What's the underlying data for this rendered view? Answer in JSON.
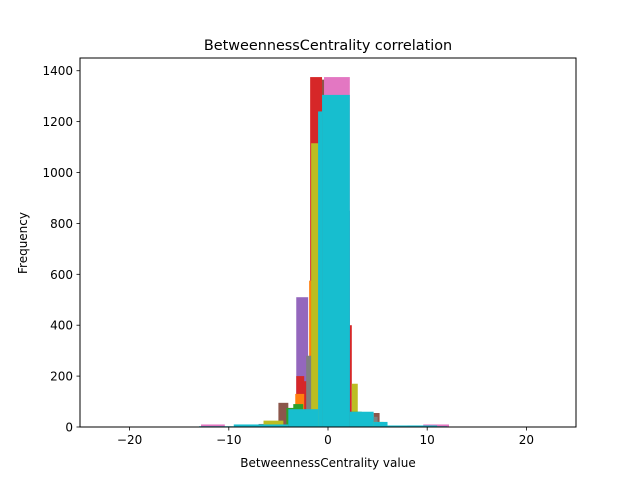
{
  "chart_data": {
    "type": "bar",
    "title": "BetweennessCentrality correlation",
    "xlabel": "BetweennessCentrality value",
    "ylabel": "Frequency",
    "xlim": [
      -25,
      25
    ],
    "ylim": [
      0,
      1450
    ],
    "xticks": [
      -20,
      -10,
      0,
      10,
      20
    ],
    "xtick_labels": [
      "−20",
      "−10",
      "0",
      "10",
      "20"
    ],
    "yticks": [
      0,
      200,
      400,
      600,
      800,
      1000,
      1200,
      1400
    ],
    "ytick_labels": [
      "0",
      "200",
      "400",
      "600",
      "800",
      "1000",
      "1200",
      "1400"
    ],
    "grid": false,
    "legend": "none",
    "series": [
      {
        "color": "#9467bd",
        "bins": [
          [
            -3.2,
            -2.0,
            510
          ],
          [
            -4.5,
            -3.2,
            45
          ],
          [
            -2.0,
            -1.0,
            40
          ]
        ]
      },
      {
        "color": "#8c564b",
        "bins": [
          [
            -5.0,
            -4.0,
            95
          ],
          [
            -4.0,
            -3.3,
            60
          ],
          [
            -1.2,
            -0.2,
            1365
          ],
          [
            4.6,
            5.2,
            55
          ]
        ]
      },
      {
        "color": "#d62728",
        "bins": [
          [
            -1.8,
            -0.6,
            1375
          ],
          [
            -3.2,
            -2.4,
            200
          ],
          [
            2.0,
            2.4,
            400
          ],
          [
            -2.6,
            -1.8,
            180
          ]
        ]
      },
      {
        "color": "#e377c2",
        "bins": [
          [
            -0.4,
            2.2,
            1375
          ],
          [
            -1.3,
            -0.7,
            700
          ],
          [
            -12.8,
            -10.4,
            10
          ],
          [
            9.6,
            12.2,
            10
          ]
        ]
      },
      {
        "color": "#ff7f0e",
        "bins": [
          [
            -1.9,
            -1.2,
            575
          ],
          [
            -3.3,
            -2.4,
            130
          ],
          [
            -1.2,
            -0.6,
            505
          ]
        ]
      },
      {
        "color": "#7f7f7f",
        "bins": [
          [
            -2.2,
            -1.2,
            280
          ],
          [
            4.2,
            5.0,
            40
          ],
          [
            -7.0,
            -5.0,
            12
          ]
        ]
      },
      {
        "color": "#bcbd22",
        "bins": [
          [
            -1.7,
            -0.9,
            1115
          ],
          [
            2.4,
            3.0,
            170
          ],
          [
            -6.5,
            -4.5,
            25
          ],
          [
            4.0,
            5.6,
            20
          ]
        ]
      },
      {
        "color": "#2ca02c",
        "bins": [
          [
            -4.2,
            -3.0,
            75
          ],
          [
            2.2,
            3.4,
            60
          ],
          [
            -3.5,
            -2.5,
            90
          ]
        ]
      },
      {
        "color": "#1f77b4",
        "bins": [
          [
            2.0,
            2.2,
            850
          ],
          [
            -3.8,
            -2.8,
            60
          ],
          [
            3.0,
            4.5,
            50
          ],
          [
            -8.5,
            -6.5,
            8
          ],
          [
            8.0,
            10.5,
            6
          ]
        ]
      },
      {
        "color": "#17becf",
        "bins": [
          [
            -0.6,
            2.2,
            1305
          ],
          [
            -1.0,
            -0.6,
            1240
          ],
          [
            -4.0,
            -1.0,
            70
          ],
          [
            2.2,
            4.6,
            60
          ],
          [
            4.6,
            6.0,
            20
          ],
          [
            -9.5,
            -4.0,
            10
          ],
          [
            6.0,
            11.0,
            6
          ],
          [
            -13.0,
            -9.5,
            3
          ],
          [
            11.0,
            12.0,
            3
          ]
        ]
      }
    ]
  }
}
